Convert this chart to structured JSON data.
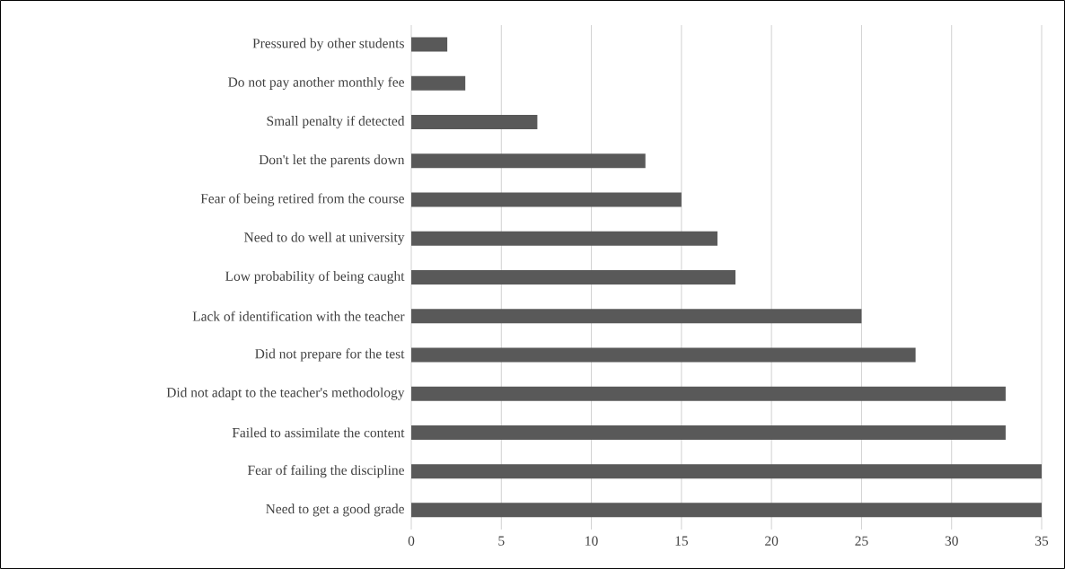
{
  "chart_data": {
    "type": "bar",
    "orientation": "horizontal",
    "categories": [
      "Pressured by other students",
      "Do not pay another monthly fee",
      "Small penalty if detected",
      "Don't let the parents down",
      "Fear of being retired from the course",
      "Need to do well at university",
      "Low probability of being caught",
      "Lack of identification with the teacher",
      "Did not prepare for the test",
      "Did not adapt to the teacher's methodology",
      "Failed to assimilate the content",
      "Fear of failing the discipline",
      "Need to get a good grade"
    ],
    "values": [
      2,
      3,
      7,
      13,
      15,
      17,
      18,
      25,
      28,
      33,
      33,
      35,
      35
    ],
    "color": "#595959",
    "xlim": [
      0,
      35
    ],
    "xticks": [
      0,
      5,
      10,
      15,
      20,
      25,
      30,
      35
    ],
    "grid": "x"
  }
}
